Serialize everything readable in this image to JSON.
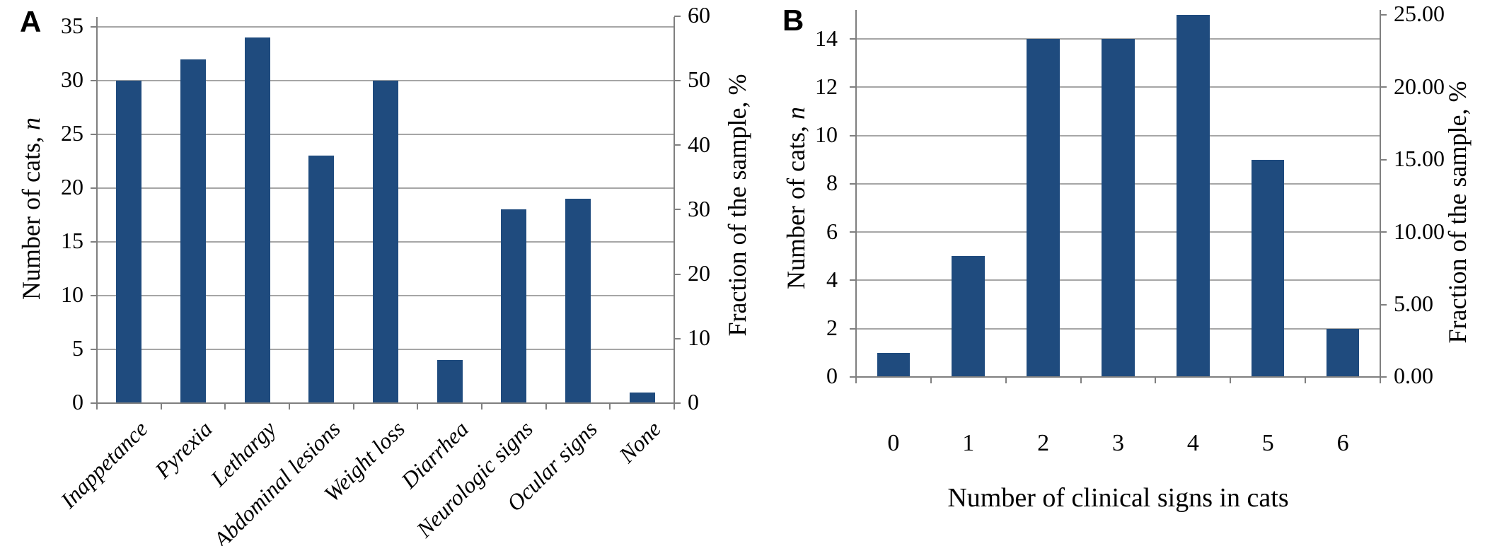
{
  "figure": {
    "background": "#ffffff",
    "panels": [
      "A",
      "B"
    ]
  },
  "chart_data": [
    {
      "panel_label": "A",
      "type": "bar",
      "categories": [
        "Inappetance",
        "Pyrexia",
        "Lethargy",
        "Abdominal lesions",
        "Weight loss",
        "Diarrhea",
        "Neurologic signs",
        "Ocular signs",
        "None"
      ],
      "values": [
        30,
        32,
        34,
        23,
        30,
        4,
        18,
        19,
        1
      ],
      "ylabel_left_main": "Number of cats, ",
      "ylabel_left_italic": "n",
      "ylabel_right": "Fraction of the sample, %",
      "xlabel": "",
      "ylim_left": [
        0,
        35
      ],
      "ylim_right": [
        0,
        60
      ],
      "left_tick_values": [
        0,
        5,
        10,
        15,
        20,
        25,
        30,
        35
      ],
      "left_tick_labels": [
        "0",
        "5",
        "10",
        "15",
        "20",
        "25",
        "30",
        "35"
      ],
      "right_tick_values": [
        0,
        10,
        20,
        30,
        40,
        50,
        60
      ],
      "right_tick_labels": [
        "0",
        "10",
        "20",
        "30",
        "40",
        "50",
        "60"
      ],
      "right_axis_n_per_percent": 0.6,
      "grid": true,
      "bar_color": "#1F4B7E",
      "gridline_color": "#A6A6A6",
      "axis_color": "#7F7F7F",
      "text_color": "#000000"
    },
    {
      "panel_label": "B",
      "type": "bar",
      "categories": [
        "0",
        "1",
        "2",
        "3",
        "4",
        "5",
        "6"
      ],
      "values": [
        1,
        5,
        14,
        14,
        15,
        9,
        2
      ],
      "ylabel_left_main": "Number of cats, ",
      "ylabel_left_italic": "n",
      "ylabel_right": "Fraction of the sample, %",
      "xlabel": "Number of clinical signs in cats",
      "ylim_left": [
        0,
        15
      ],
      "ylim_right": [
        0,
        25
      ],
      "left_tick_values": [
        0,
        2,
        4,
        6,
        8,
        10,
        12,
        14
      ],
      "left_tick_labels": [
        "0",
        "2",
        "4",
        "6",
        "8",
        "10",
        "12",
        "14"
      ],
      "right_tick_values": [
        0,
        5,
        10,
        15,
        20,
        25
      ],
      "right_tick_labels": [
        "0.00",
        "5.00",
        "10.00",
        "15.00",
        "20.00",
        "25.00"
      ],
      "right_axis_n_per_percent": 0.6,
      "grid": true,
      "bar_color": "#1F4B7E",
      "gridline_color": "#A6A6A6",
      "axis_color": "#7F7F7F",
      "text_color": "#000000"
    }
  ]
}
